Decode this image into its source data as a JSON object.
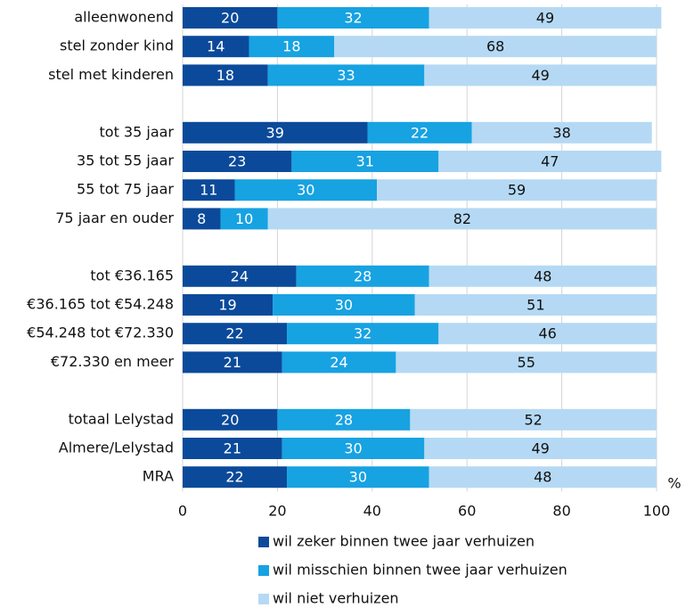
{
  "chart_data": {
    "type": "stacked_barh",
    "categories": [
      "alleenwonend",
      "stel zonder kind",
      "stel met kinderen",
      null,
      "tot 35 jaar",
      "35 tot 55 jaar",
      "55 tot 75 jaar",
      "75 jaar en ouder",
      null,
      "tot €36.165",
      "€36.165 tot €54.248",
      "€54.248 tot €72.330",
      "€72.330 en meer",
      null,
      "totaal Lelystad",
      "Almere/Lelystad",
      "MRA"
    ],
    "series": [
      {
        "name": "wil zeker binnen twee jaar verhuizen",
        "color": "#0b4a9a",
        "label_color": "#ffffff",
        "values": [
          20,
          14,
          18,
          null,
          39,
          23,
          11,
          8,
          null,
          24,
          19,
          22,
          21,
          null,
          20,
          21,
          22
        ]
      },
      {
        "name": "wil misschien binnen twee jaar verhuizen",
        "color": "#17a2e2",
        "label_color": "#ffffff",
        "values": [
          32,
          18,
          33,
          null,
          22,
          31,
          30,
          10,
          null,
          28,
          30,
          32,
          24,
          null,
          28,
          30,
          30
        ]
      },
      {
        "name": "wil niet verhuizen",
        "color": "#b5d9f4",
        "label_color": "#111111",
        "values": [
          49,
          68,
          49,
          null,
          38,
          47,
          59,
          82,
          null,
          48,
          51,
          46,
          55,
          null,
          52,
          49,
          48
        ]
      }
    ],
    "x_label": "%",
    "xlim": [
      0,
      100
    ],
    "xticks": [
      0,
      20,
      40,
      60,
      80,
      100
    ],
    "grid": true
  }
}
